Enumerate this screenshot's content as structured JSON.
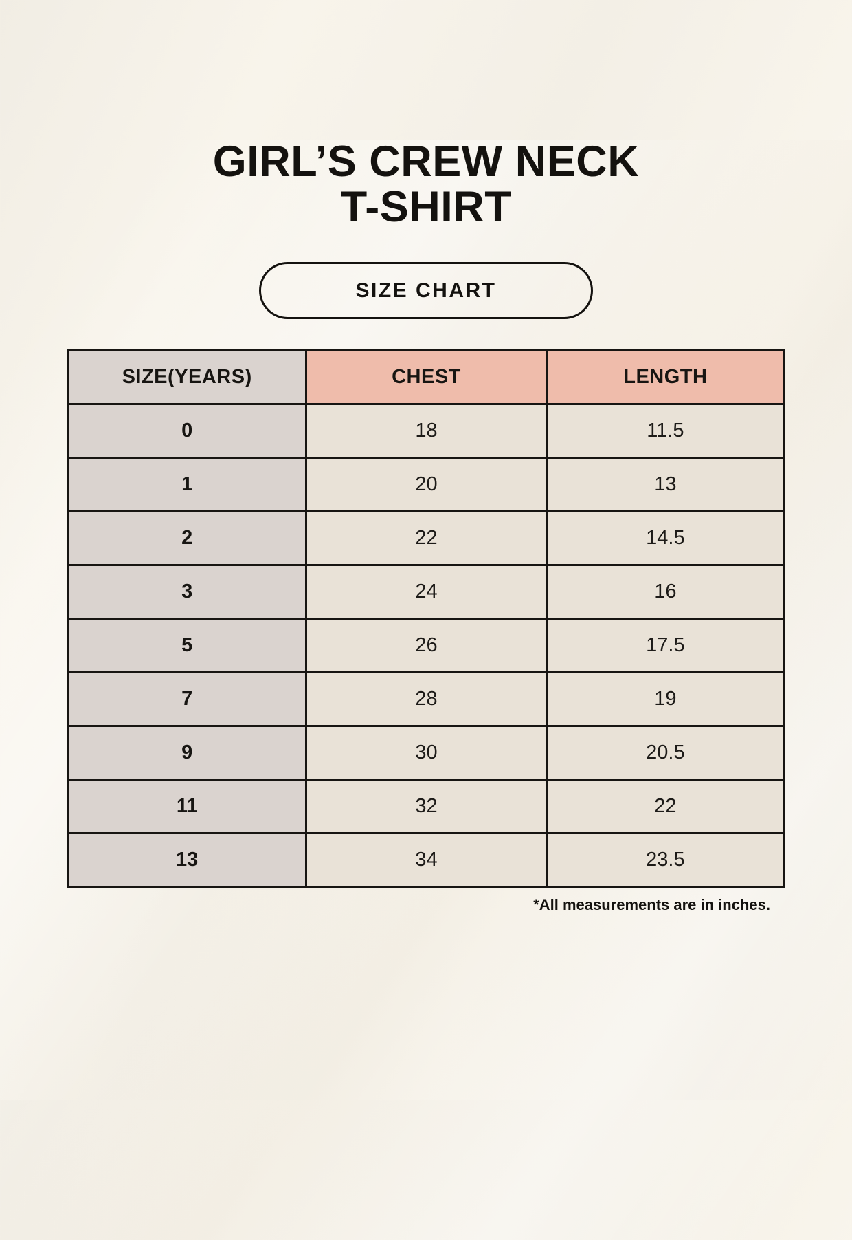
{
  "page": {
    "title_line1": "GIRL’S CREW NECK",
    "title_line2": "T-SHIRT",
    "badge_label": "SIZE CHART",
    "footnote": "*All measurements are in inches."
  },
  "colors": {
    "page-bg": "#f5f1e8",
    "header-accent": "#efbcab",
    "gray-cell": "#dad3cf",
    "cream-cell": "#e9e2d7",
    "border": "#171512",
    "text": "#171512"
  },
  "table": {
    "headers": {
      "size": "SIZE(YEARS)",
      "chest": "CHEST",
      "length": "LENGTH"
    },
    "rows": [
      {
        "size": "0",
        "chest": "18",
        "length": "11.5"
      },
      {
        "size": "1",
        "chest": "20",
        "length": "13"
      },
      {
        "size": "2",
        "chest": "22",
        "length": "14.5"
      },
      {
        "size": "3",
        "chest": "24",
        "length": "16"
      },
      {
        "size": "5",
        "chest": "26",
        "length": "17.5"
      },
      {
        "size": "7",
        "chest": "28",
        "length": "19"
      },
      {
        "size": "9",
        "chest": "30",
        "length": "20.5"
      },
      {
        "size": "11",
        "chest": "32",
        "length": "22"
      },
      {
        "size": "13",
        "chest": "34",
        "length": "23.5"
      }
    ],
    "unit": "inches"
  },
  "chart_data": {
    "type": "table",
    "title": "GIRL’S CREW NECK T-SHIRT — SIZE CHART",
    "columns": [
      "SIZE(YEARS)",
      "CHEST",
      "LENGTH"
    ],
    "rows": [
      [
        "0",
        18,
        11.5
      ],
      [
        "1",
        20,
        13
      ],
      [
        "2",
        22,
        14.5
      ],
      [
        "3",
        24,
        16
      ],
      [
        "5",
        26,
        17.5
      ],
      [
        "7",
        28,
        19
      ],
      [
        "9",
        30,
        20.5
      ],
      [
        "11",
        32,
        22
      ],
      [
        "13",
        34,
        23.5
      ]
    ],
    "notes": "*All measurements are in inches."
  }
}
